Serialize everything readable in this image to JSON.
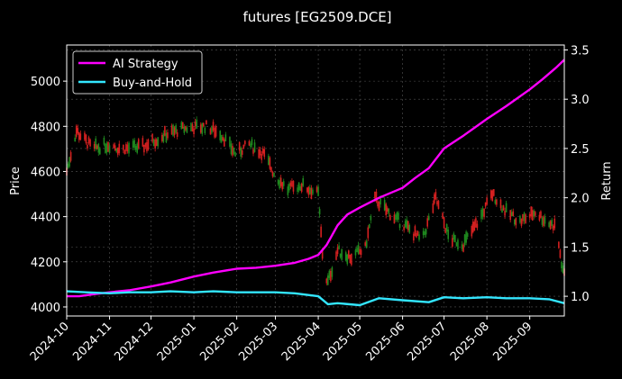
{
  "chart_data": {
    "type": "line",
    "title": "futures [EG2509.DCE]",
    "y_left_label": "Price",
    "y_right_label": "Return",
    "grid": true,
    "legend_position": "top-left",
    "x_tick_labels": [
      "2024-10",
      "2024-11",
      "2024-12",
      "2025-01",
      "2025-02",
      "2025-03",
      "2025-04",
      "2025-05",
      "2025-06",
      "2025-07",
      "2025-08",
      "2025-09"
    ],
    "y_left_ticks": [
      4000,
      4200,
      4400,
      4600,
      4800,
      5000
    ],
    "y_left_range": [
      3960,
      5160
    ],
    "y_right_ticks": [
      1.0,
      1.5,
      2.0,
      2.5,
      3.0,
      3.5
    ],
    "y_right_range": [
      0.8,
      3.55
    ],
    "x_range": [
      "2024-10-01",
      "2025-09-26"
    ],
    "series": [
      {
        "name": "AI Strategy",
        "color": "#ff00ff",
        "axis": "right",
        "points": [
          [
            "2024-10-01",
            1.0
          ],
          [
            "2024-10-10",
            1.0
          ],
          [
            "2024-10-20",
            1.02
          ],
          [
            "2024-11-01",
            1.04
          ],
          [
            "2024-11-15",
            1.06
          ],
          [
            "2024-12-01",
            1.1
          ],
          [
            "2024-12-15",
            1.14
          ],
          [
            "2025-01-01",
            1.2
          ],
          [
            "2025-01-15",
            1.24
          ],
          [
            "2025-02-01",
            1.28
          ],
          [
            "2025-02-15",
            1.29
          ],
          [
            "2025-03-01",
            1.31
          ],
          [
            "2025-03-15",
            1.34
          ],
          [
            "2025-03-25",
            1.38
          ],
          [
            "2025-04-01",
            1.42
          ],
          [
            "2025-04-07",
            1.52
          ],
          [
            "2025-04-15",
            1.72
          ],
          [
            "2025-04-22",
            1.83
          ],
          [
            "2025-05-01",
            1.9
          ],
          [
            "2025-05-15",
            2.0
          ],
          [
            "2025-06-01",
            2.1
          ],
          [
            "2025-06-10",
            2.2
          ],
          [
            "2025-06-20",
            2.3
          ],
          [
            "2025-07-01",
            2.5
          ],
          [
            "2025-07-15",
            2.63
          ],
          [
            "2025-08-01",
            2.8
          ],
          [
            "2025-08-15",
            2.93
          ],
          [
            "2025-09-01",
            3.1
          ],
          [
            "2025-09-10",
            3.2
          ],
          [
            "2025-09-20",
            3.32
          ],
          [
            "2025-09-26",
            3.4
          ]
        ]
      },
      {
        "name": "Buy-and-Hold",
        "color": "#33e6ff",
        "axis": "right",
        "points": [
          [
            "2024-10-01",
            1.05
          ],
          [
            "2024-10-15",
            1.04
          ],
          [
            "2024-11-01",
            1.03
          ],
          [
            "2024-11-15",
            1.04
          ],
          [
            "2024-12-01",
            1.04
          ],
          [
            "2024-12-15",
            1.05
          ],
          [
            "2025-01-01",
            1.04
          ],
          [
            "2025-01-15",
            1.05
          ],
          [
            "2025-02-01",
            1.04
          ],
          [
            "2025-02-15",
            1.04
          ],
          [
            "2025-03-01",
            1.04
          ],
          [
            "2025-03-15",
            1.03
          ],
          [
            "2025-04-01",
            1.0
          ],
          [
            "2025-04-08",
            0.92
          ],
          [
            "2025-04-15",
            0.93
          ],
          [
            "2025-05-01",
            0.91
          ],
          [
            "2025-05-15",
            0.98
          ],
          [
            "2025-06-01",
            0.96
          ],
          [
            "2025-06-20",
            0.94
          ],
          [
            "2025-07-01",
            0.99
          ],
          [
            "2025-07-15",
            0.98
          ],
          [
            "2025-08-01",
            0.99
          ],
          [
            "2025-08-15",
            0.98
          ],
          [
            "2025-09-01",
            0.98
          ],
          [
            "2025-09-15",
            0.97
          ],
          [
            "2025-09-26",
            0.93
          ]
        ]
      }
    ],
    "price_anchors": [
      [
        "2024-10-01",
        4600
      ],
      [
        "2024-10-08",
        4780
      ],
      [
        "2024-10-20",
        4700
      ],
      [
        "2024-10-31",
        4720
      ],
      [
        "2024-11-10",
        4700
      ],
      [
        "2024-11-25",
        4710
      ],
      [
        "2024-12-10",
        4760
      ],
      [
        "2024-12-25",
        4790
      ],
      [
        "2025-01-10",
        4800
      ],
      [
        "2025-01-20",
        4770
      ],
      [
        "2025-01-31",
        4680
      ],
      [
        "2025-02-10",
        4720
      ],
      [
        "2025-02-20",
        4680
      ],
      [
        "2025-03-01",
        4580
      ],
      [
        "2025-03-10",
        4520
      ],
      [
        "2025-03-20",
        4540
      ],
      [
        "2025-04-01",
        4500
      ],
      [
        "2025-04-05",
        4150
      ],
      [
        "2025-04-08",
        4110
      ],
      [
        "2025-04-15",
        4250
      ],
      [
        "2025-04-25",
        4220
      ],
      [
        "2025-05-05",
        4260
      ],
      [
        "2025-05-12",
        4480
      ],
      [
        "2025-05-25",
        4400
      ],
      [
        "2025-06-05",
        4350
      ],
      [
        "2025-06-15",
        4290
      ],
      [
        "2025-06-25",
        4480
      ],
      [
        "2025-07-05",
        4300
      ],
      [
        "2025-07-15",
        4280
      ],
      [
        "2025-07-25",
        4370
      ],
      [
        "2025-08-05",
        4500
      ],
      [
        "2025-08-15",
        4420
      ],
      [
        "2025-08-25",
        4380
      ],
      [
        "2025-09-05",
        4420
      ],
      [
        "2025-09-15",
        4370
      ],
      [
        "2025-09-20",
        4360
      ],
      [
        "2025-09-25",
        4150
      ]
    ]
  }
}
